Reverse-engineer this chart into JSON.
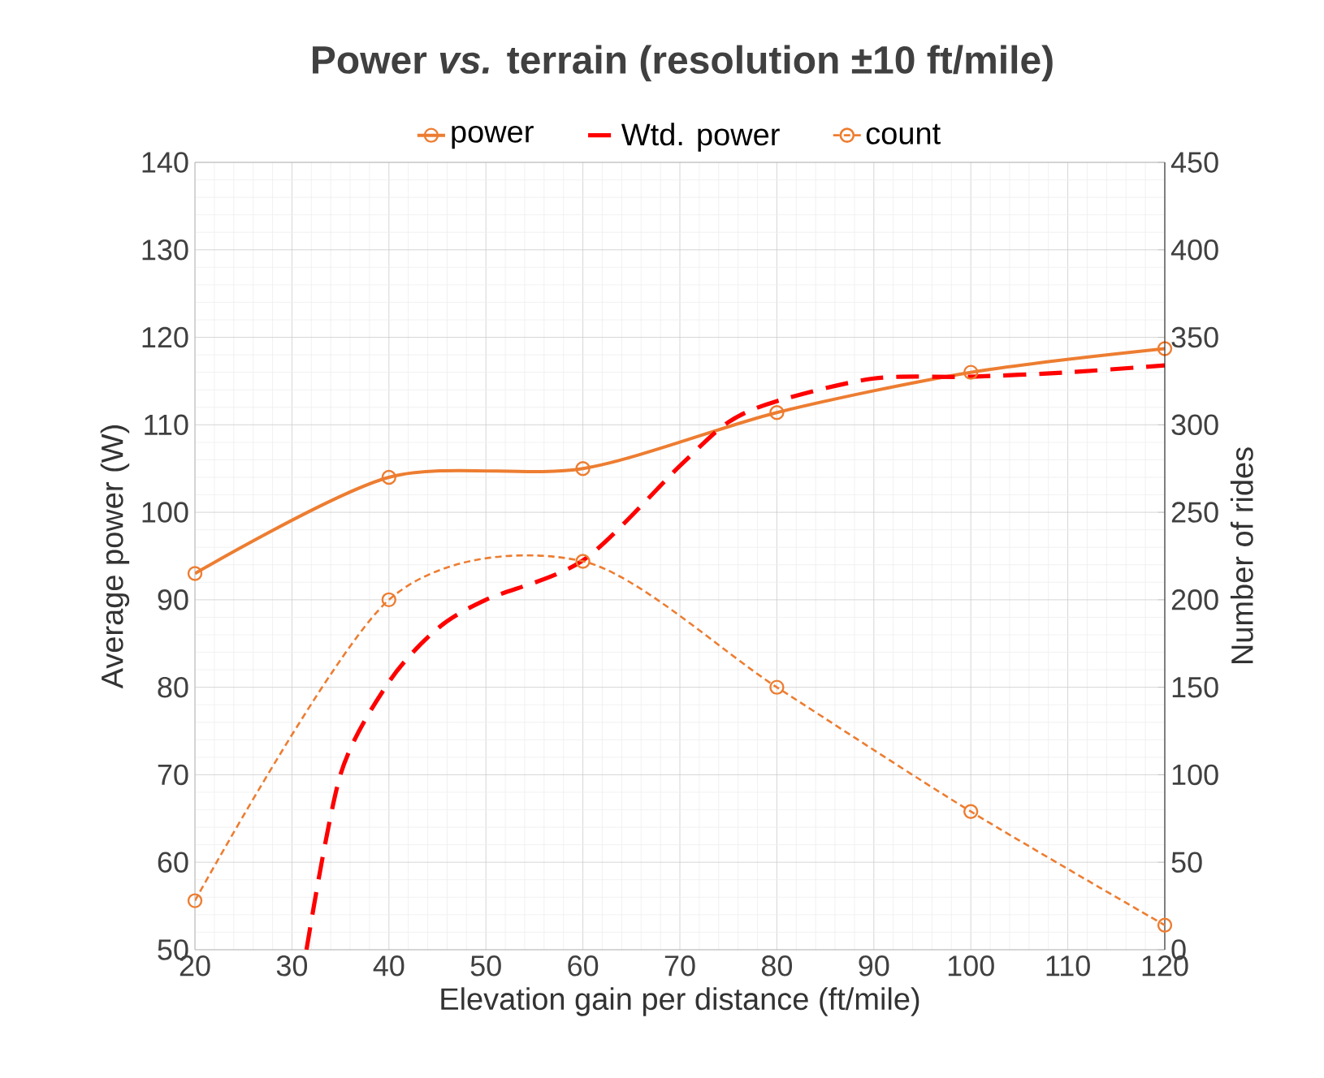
{
  "chart_data": {
    "type": "line",
    "title": "Power *vs.* terrain (resolution ±10 ft/mile)",
    "xlabel": "Elevation gain per distance (ft/mile)",
    "ylabel": "Average power (W)",
    "y2label": "Number of rides",
    "x": [
      20,
      40,
      60,
      80,
      100,
      120
    ],
    "series": [
      {
        "name": "power",
        "color": "#ed7d31",
        "marker": "circle",
        "line_style": "solid",
        "values": [
          93,
          104,
          105,
          111.4,
          116,
          118.7
        ]
      },
      {
        "name": "Wtd. power",
        "color": "#ff0000",
        "marker": "none",
        "line_style": "dashed",
        "x": [
          31.5,
          35,
          40,
          45,
          50,
          60,
          70,
          75,
          80,
          90,
          100,
          110,
          120
        ],
        "values": [
          50,
          70,
          80.6,
          86.7,
          90,
          94.5,
          105.3,
          110.3,
          112.7,
          115.3,
          115.5,
          116,
          116.8
        ]
      },
      {
        "name": "count",
        "color": "#ed7d31",
        "marker": "circle",
        "line_style": "dotted",
        "axis": "y2",
        "values": [
          28,
          200,
          222,
          150,
          79,
          14
        ]
      }
    ],
    "xlim": [
      20,
      120
    ],
    "xticks": [
      20,
      30,
      40,
      50,
      60,
      70,
      80,
      90,
      100,
      110,
      120
    ],
    "ylim": [
      50,
      140
    ],
    "yticks": [
      50,
      60,
      70,
      80,
      90,
      100,
      110,
      120,
      130,
      140
    ],
    "y2lim": [
      0,
      450
    ],
    "y2ticks": [
      0,
      50,
      100,
      150,
      200,
      250,
      300,
      350,
      400,
      450
    ],
    "grid": true,
    "legend": "top"
  }
}
